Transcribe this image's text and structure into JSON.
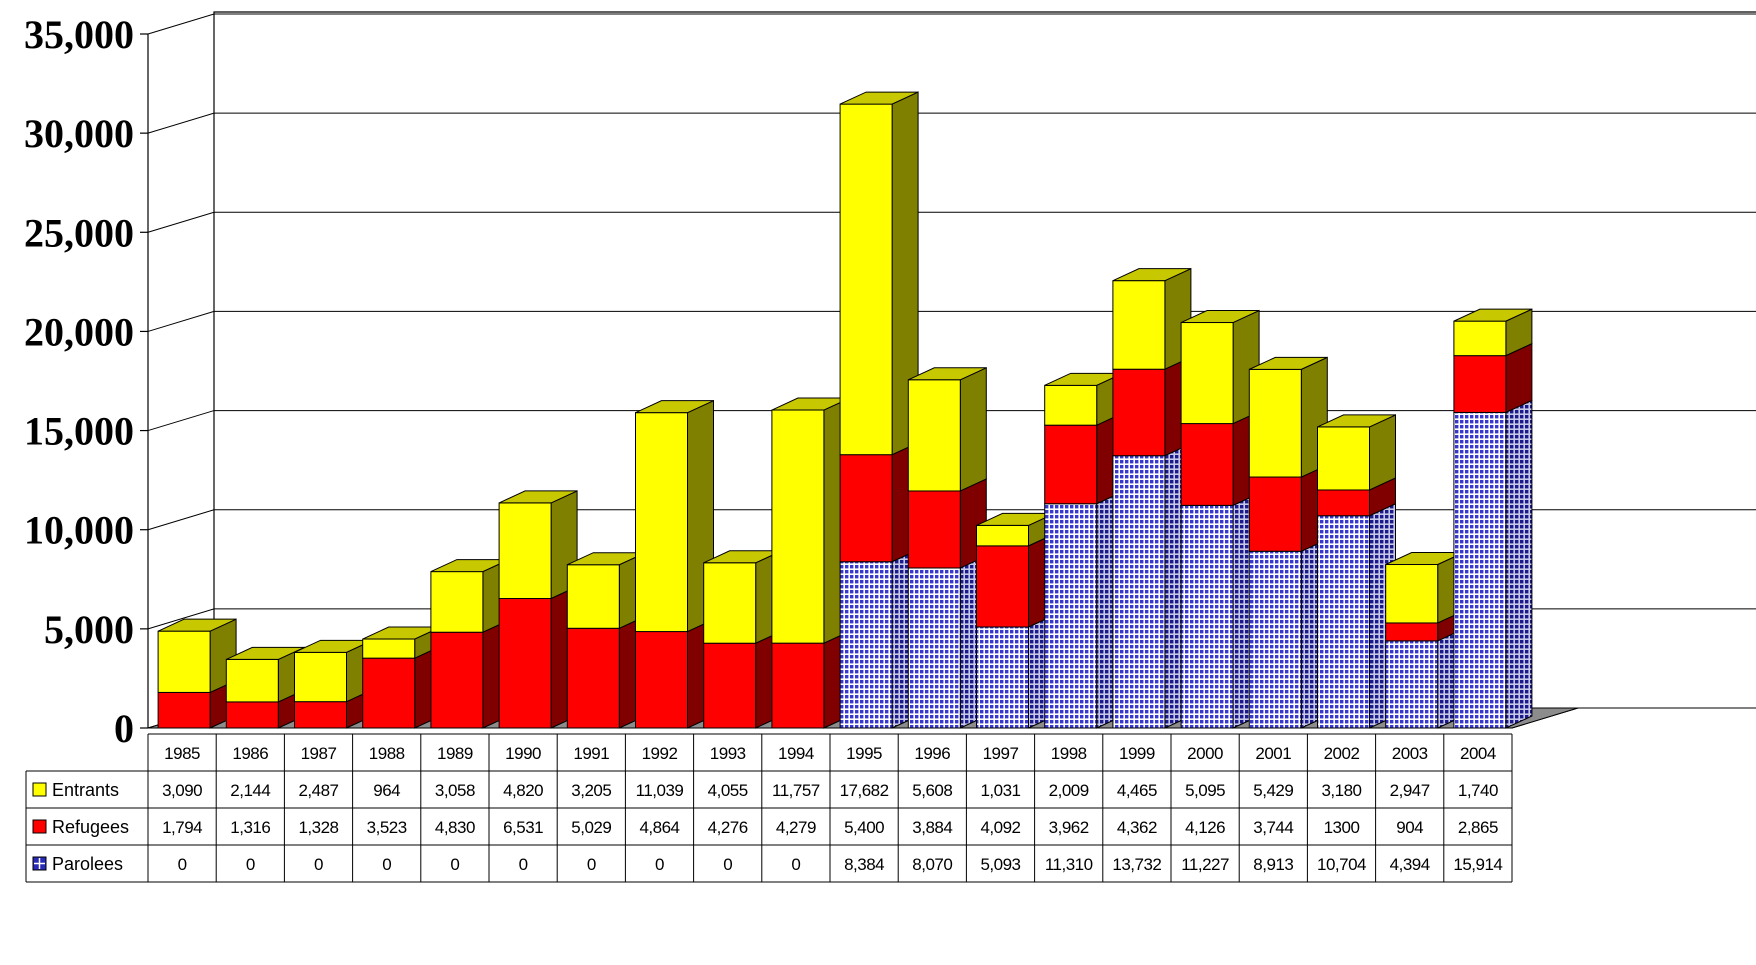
{
  "chart_data": {
    "type": "bar",
    "stacked": true,
    "three_d": true,
    "categories": [
      "1985",
      "1986",
      "1987",
      "1988",
      "1989",
      "1990",
      "1991",
      "1992",
      "1993",
      "1994",
      "1995",
      "1996",
      "1997",
      "1998",
      "1999",
      "2000",
      "2001",
      "2002",
      "2003",
      "2004"
    ],
    "series": [
      {
        "name": "Parolees",
        "color": "#3333cc",
        "pattern": "grid",
        "values": [
          0,
          0,
          0,
          0,
          0,
          0,
          0,
          0,
          0,
          0,
          8384,
          8070,
          5093,
          11310,
          13732,
          11227,
          8913,
          10704,
          4394,
          15914
        ],
        "labels": [
          "0",
          "0",
          "0",
          "0",
          "0",
          "0",
          "0",
          "0",
          "0",
          "0",
          "8,384",
          "8,070",
          "5,093",
          "11,310",
          "13,732",
          "11,227",
          "8,913",
          "10,704",
          "4,394",
          "15,914"
        ]
      },
      {
        "name": "Refugees",
        "color": "#ff0000",
        "values": [
          1794,
          1316,
          1328,
          3523,
          4830,
          6531,
          5029,
          4864,
          4276,
          4279,
          5400,
          3884,
          4092,
          3962,
          4362,
          4126,
          3744,
          1300,
          904,
          2865
        ],
        "labels": [
          "1,794",
          "1,316",
          "1,328",
          "3,523",
          "4,830",
          "6,531",
          "5,029",
          "4,864",
          "4,276",
          "4,279",
          "5,400",
          "3,884",
          "4,092",
          "3,962",
          "4,362",
          "4,126",
          "3,744",
          "1300",
          "904",
          "2,865"
        ]
      },
      {
        "name": "Entrants",
        "color": "#ffff00",
        "values": [
          3090,
          2144,
          2487,
          964,
          3058,
          4820,
          3205,
          11039,
          4055,
          11757,
          17682,
          5608,
          1031,
          2009,
          4465,
          5095,
          5429,
          3180,
          2947,
          1740
        ],
        "labels": [
          "3,090",
          "2,144",
          "2,487",
          "964",
          "3,058",
          "4,820",
          "3,205",
          "11,039",
          "4,055",
          "11,757",
          "17,682",
          "5,608",
          "1,031",
          "2,009",
          "4,465",
          "5,095",
          "5,429",
          "3,180",
          "2,947",
          "1,740"
        ]
      }
    ],
    "table_order": [
      "Entrants",
      "Refugees",
      "Parolees"
    ],
    "ylim": [
      0,
      35000
    ],
    "yticks": [
      "0",
      "5,000",
      "10,000",
      "15,000",
      "20,000",
      "25,000",
      "30,000",
      "35,000"
    ],
    "ytick_values": [
      0,
      5000,
      10000,
      15000,
      20000,
      25000,
      30000,
      35000
    ],
    "grid": true,
    "legend": "data-table",
    "title": "",
    "xlabel": "",
    "ylabel": ""
  }
}
